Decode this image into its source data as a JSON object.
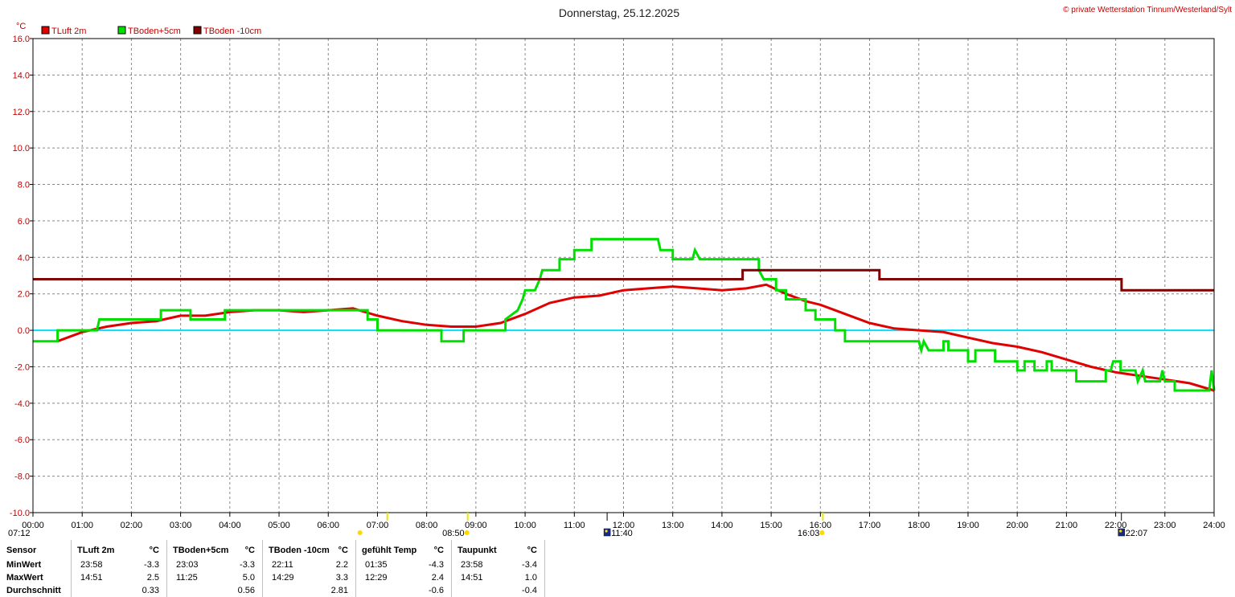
{
  "chart_data": {
    "type": "line",
    "title": "Donnerstag, 25.12.2025",
    "credit": "© private Wetterstation Tinnum/Westerland/Sylt",
    "y_unit": "°C",
    "ylim": [
      -10,
      16
    ],
    "y_ticks": [
      "16.0",
      "14.0",
      "12.0",
      "10.0",
      "8.0",
      "6.0",
      "4.0",
      "2.0",
      "0.0",
      "-2.0",
      "-4.0",
      "-6.0",
      "-8.0",
      "-10.0"
    ],
    "x_ticks": [
      "00:00",
      "01:00",
      "02:00",
      "03:00",
      "04:00",
      "05:00",
      "06:00",
      "07:00",
      "08:00",
      "09:00",
      "10:00",
      "11:00",
      "12:00",
      "13:00",
      "14:00",
      "15:00",
      "16:00",
      "17:00",
      "18:00",
      "19:00",
      "20:00",
      "21:00",
      "22:00",
      "23:00",
      "24:00"
    ],
    "xlim_hours": [
      0,
      24
    ],
    "grid": true,
    "zero_line": true,
    "sun_events": [
      "07:12",
      "08:50",
      "16:03"
    ],
    "moon_events": [
      "11:40",
      "22:07"
    ],
    "series": [
      {
        "name": "TLuft 2m",
        "color": "#e00000",
        "points": [
          [
            0.5,
            -0.6
          ],
          [
            1.0,
            -0.1
          ],
          [
            1.5,
            0.2
          ],
          [
            2.0,
            0.4
          ],
          [
            2.5,
            0.5
          ],
          [
            3.0,
            0.8
          ],
          [
            3.5,
            0.8
          ],
          [
            4.0,
            1.0
          ],
          [
            4.5,
            1.1
          ],
          [
            5.0,
            1.1
          ],
          [
            5.5,
            1.0
          ],
          [
            6.0,
            1.1
          ],
          [
            6.5,
            1.2
          ],
          [
            7.0,
            0.8
          ],
          [
            7.5,
            0.5
          ],
          [
            8.0,
            0.3
          ],
          [
            8.5,
            0.2
          ],
          [
            9.0,
            0.2
          ],
          [
            9.5,
            0.4
          ],
          [
            10.0,
            0.9
          ],
          [
            10.5,
            1.5
          ],
          [
            11.0,
            1.8
          ],
          [
            11.5,
            1.9
          ],
          [
            12.0,
            2.2
          ],
          [
            12.5,
            2.3
          ],
          [
            13.0,
            2.4
          ],
          [
            13.5,
            2.3
          ],
          [
            14.0,
            2.2
          ],
          [
            14.5,
            2.3
          ],
          [
            14.9,
            2.5
          ],
          [
            15.3,
            2.0
          ],
          [
            15.7,
            1.6
          ],
          [
            16.0,
            1.4
          ],
          [
            16.5,
            0.9
          ],
          [
            17.0,
            0.4
          ],
          [
            17.5,
            0.1
          ],
          [
            18.0,
            0.0
          ],
          [
            18.5,
            -0.1
          ],
          [
            19.0,
            -0.4
          ],
          [
            19.5,
            -0.7
          ],
          [
            20.0,
            -0.9
          ],
          [
            20.5,
            -1.2
          ],
          [
            21.0,
            -1.6
          ],
          [
            21.5,
            -2.0
          ],
          [
            22.0,
            -2.3
          ],
          [
            22.5,
            -2.5
          ],
          [
            23.0,
            -2.7
          ],
          [
            23.5,
            -2.9
          ],
          [
            24.0,
            -3.3
          ]
        ]
      },
      {
        "name": "TBoden+5cm",
        "color": "#00e000",
        "points": [
          [
            0,
            -0.6
          ],
          [
            0.5,
            -0.6
          ],
          [
            0.5,
            0.0
          ],
          [
            1.0,
            0.0
          ],
          [
            1.3,
            0.0
          ],
          [
            1.35,
            0.6
          ],
          [
            2.0,
            0.6
          ],
          [
            2.6,
            0.6
          ],
          [
            2.6,
            1.1
          ],
          [
            3.2,
            1.1
          ],
          [
            3.2,
            0.6
          ],
          [
            3.9,
            0.6
          ],
          [
            3.9,
            1.1
          ],
          [
            6.8,
            1.1
          ],
          [
            6.8,
            0.6
          ],
          [
            7.0,
            0.6
          ],
          [
            7.0,
            0.0
          ],
          [
            8.3,
            0.0
          ],
          [
            8.3,
            -0.6
          ],
          [
            8.75,
            -0.6
          ],
          [
            8.75,
            0.0
          ],
          [
            9.6,
            0.0
          ],
          [
            9.6,
            0.6
          ],
          [
            9.85,
            1.1
          ],
          [
            9.95,
            1.7
          ],
          [
            10.0,
            2.2
          ],
          [
            10.2,
            2.2
          ],
          [
            10.3,
            2.8
          ],
          [
            10.35,
            3.3
          ],
          [
            10.7,
            3.3
          ],
          [
            10.7,
            3.9
          ],
          [
            11.0,
            3.9
          ],
          [
            11.0,
            4.4
          ],
          [
            11.35,
            4.4
          ],
          [
            11.35,
            5.0
          ],
          [
            12.7,
            5.0
          ],
          [
            12.75,
            4.4
          ],
          [
            13.0,
            4.4
          ],
          [
            13.0,
            3.9
          ],
          [
            13.4,
            3.9
          ],
          [
            13.45,
            4.4
          ],
          [
            13.55,
            3.9
          ],
          [
            14.0,
            3.9
          ],
          [
            14.3,
            3.9
          ],
          [
            14.6,
            3.9
          ],
          [
            14.75,
            3.9
          ],
          [
            14.75,
            3.3
          ],
          [
            14.85,
            2.8
          ],
          [
            15.1,
            2.8
          ],
          [
            15.1,
            2.2
          ],
          [
            15.3,
            2.2
          ],
          [
            15.3,
            1.7
          ],
          [
            15.7,
            1.7
          ],
          [
            15.7,
            1.1
          ],
          [
            15.9,
            1.1
          ],
          [
            15.9,
            0.6
          ],
          [
            16.3,
            0.6
          ],
          [
            16.3,
            0.0
          ],
          [
            16.5,
            0.0
          ],
          [
            16.5,
            -0.6
          ],
          [
            17.0,
            -0.6
          ],
          [
            18.0,
            -0.6
          ],
          [
            18.05,
            -1.1
          ],
          [
            18.1,
            -0.6
          ],
          [
            18.2,
            -1.1
          ],
          [
            18.5,
            -1.1
          ],
          [
            18.5,
            -0.6
          ],
          [
            18.6,
            -0.6
          ],
          [
            18.6,
            -1.1
          ],
          [
            19.0,
            -1.1
          ],
          [
            19.0,
            -1.7
          ],
          [
            19.15,
            -1.7
          ],
          [
            19.15,
            -1.1
          ],
          [
            19.55,
            -1.1
          ],
          [
            19.55,
            -1.7
          ],
          [
            20.0,
            -1.7
          ],
          [
            20.0,
            -2.2
          ],
          [
            20.15,
            -2.2
          ],
          [
            20.15,
            -1.7
          ],
          [
            20.35,
            -1.7
          ],
          [
            20.35,
            -2.2
          ],
          [
            20.6,
            -2.2
          ],
          [
            20.6,
            -1.7
          ],
          [
            20.7,
            -1.7
          ],
          [
            20.7,
            -2.2
          ],
          [
            21.2,
            -2.2
          ],
          [
            21.2,
            -2.8
          ],
          [
            21.8,
            -2.8
          ],
          [
            21.8,
            -2.2
          ],
          [
            21.9,
            -2.2
          ],
          [
            21.95,
            -1.7
          ],
          [
            22.1,
            -1.7
          ],
          [
            22.1,
            -2.2
          ],
          [
            22.4,
            -2.2
          ],
          [
            22.45,
            -2.8
          ],
          [
            22.55,
            -2.2
          ],
          [
            22.6,
            -2.8
          ],
          [
            22.9,
            -2.8
          ],
          [
            22.95,
            -2.2
          ],
          [
            23.0,
            -2.8
          ],
          [
            23.2,
            -2.8
          ],
          [
            23.2,
            -3.3
          ],
          [
            23.9,
            -3.3
          ],
          [
            23.95,
            -2.2
          ],
          [
            24.0,
            -3.3
          ]
        ]
      },
      {
        "name": "TBoden -10cm",
        "color": "#800000",
        "points": [
          [
            0,
            2.8
          ],
          [
            14.42,
            2.8
          ],
          [
            14.42,
            3.3
          ],
          [
            17.2,
            3.3
          ],
          [
            17.2,
            2.8
          ],
          [
            22.12,
            2.8
          ],
          [
            22.12,
            2.2
          ],
          [
            24.0,
            2.2
          ]
        ]
      }
    ]
  },
  "stats_table": {
    "columns": [
      {
        "header": "Sensor",
        "unit": "",
        "rows": [
          {
            "time": "MinWert",
            "value": ""
          },
          {
            "time": "MaxWert",
            "value": ""
          },
          {
            "time": "Durchschnitt",
            "value": ""
          }
        ]
      },
      {
        "header": "TLuft 2m",
        "unit": "°C",
        "rows": [
          {
            "time": "23:58",
            "value": "-3.3"
          },
          {
            "time": "14:51",
            "value": "2.5"
          },
          {
            "time": "",
            "value": "0.33"
          }
        ]
      },
      {
        "header": "TBoden+5cm",
        "unit": "°C",
        "rows": [
          {
            "time": "23:03",
            "value": "-3.3"
          },
          {
            "time": "11:25",
            "value": "5.0"
          },
          {
            "time": "",
            "value": "0.56"
          }
        ]
      },
      {
        "header": "TBoden -10cm",
        "unit": "°C",
        "rows": [
          {
            "time": "22:11",
            "value": "2.2"
          },
          {
            "time": "14:29",
            "value": "3.3"
          },
          {
            "time": "",
            "value": "2.81"
          }
        ]
      },
      {
        "header": "gefühlt Temp",
        "unit": "°C",
        "rows": [
          {
            "time": "01:35",
            "value": "-4.3"
          },
          {
            "time": "12:29",
            "value": "2.4"
          },
          {
            "time": "",
            "value": "-0.6"
          }
        ]
      },
      {
        "header": "Taupunkt",
        "unit": "°C",
        "rows": [
          {
            "time": "23:58",
            "value": "-3.4"
          },
          {
            "time": "14:51",
            "value": "1.0"
          },
          {
            "time": "",
            "value": "-0.4"
          }
        ]
      }
    ]
  }
}
